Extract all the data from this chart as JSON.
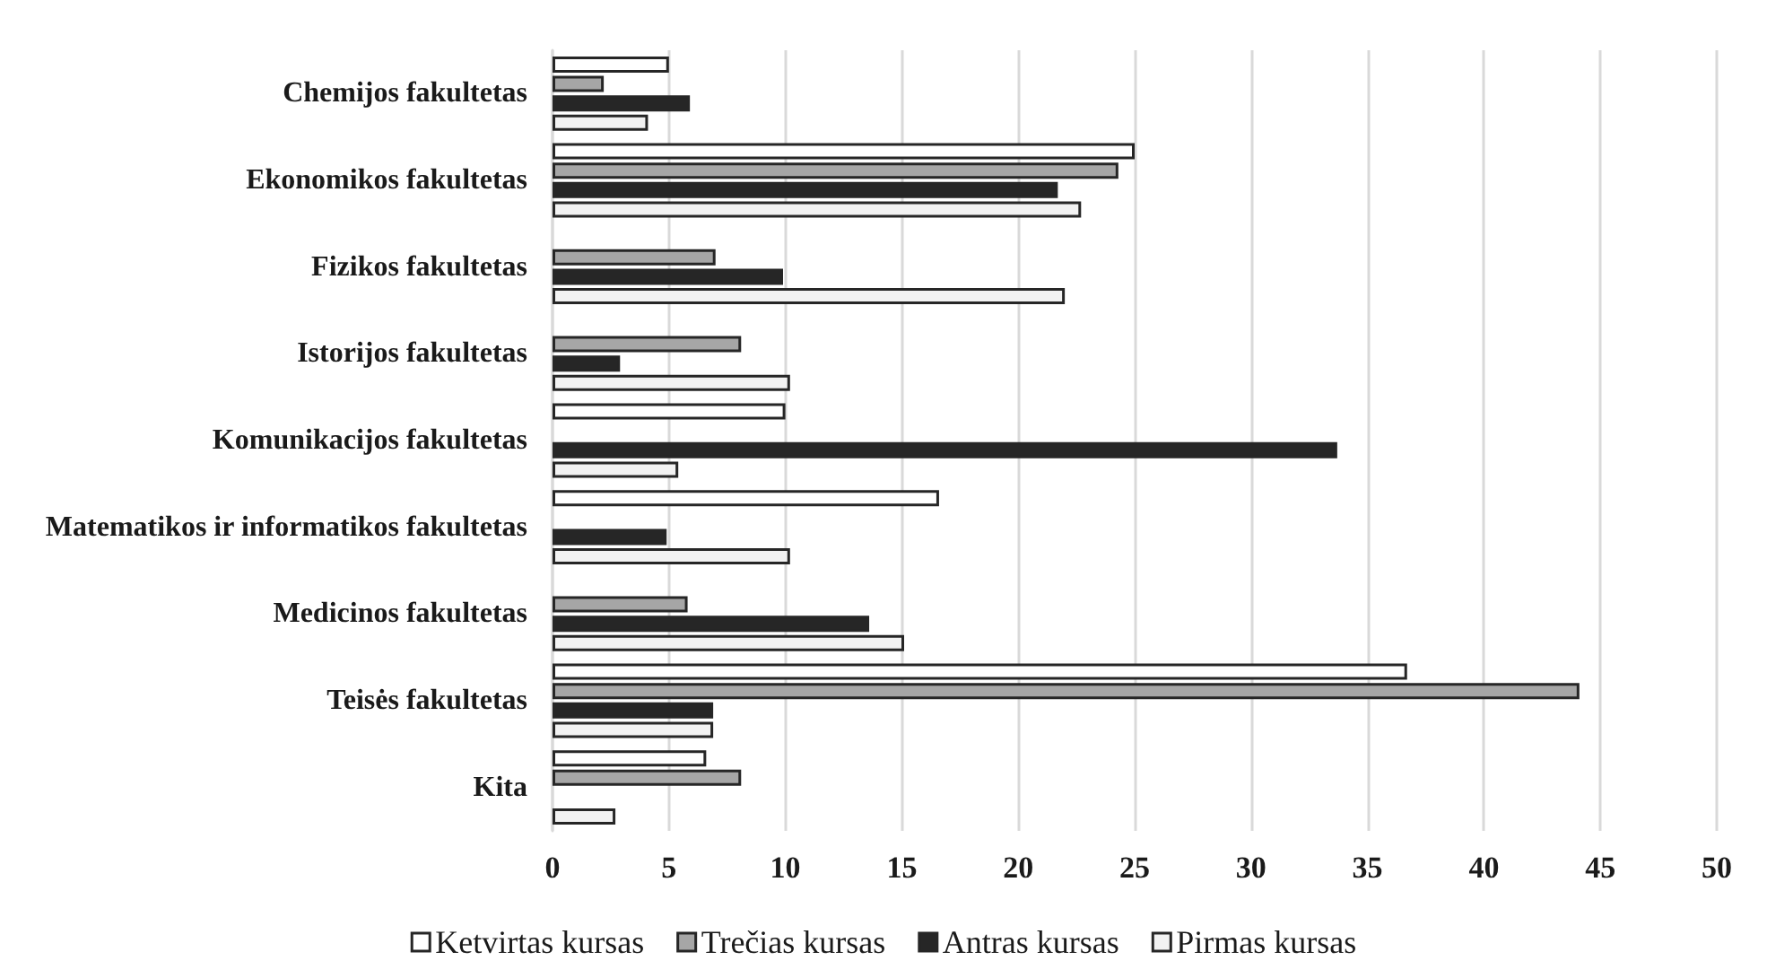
{
  "chart_data": {
    "type": "bar",
    "orientation": "horizontal",
    "categories": [
      "Chemijos fakultetas",
      "Ekonomikos fakultetas",
      "Fizikos fakultetas",
      "Istorijos fakultetas",
      "Komunikacijos fakultetas",
      "Matematikos ir informatikos fakultetas",
      "Medicinos fakultetas",
      "Teisės fakultetas",
      "Kita"
    ],
    "series": [
      {
        "name": "Ketvirtas kursas",
        "color": "#ffffff",
        "values": [
          5,
          25,
          null,
          null,
          10,
          16.6,
          null,
          36.7,
          6.6
        ]
      },
      {
        "name": "Trečias kursas",
        "color": "#a6a6a6",
        "values": [
          2.2,
          24.3,
          7,
          8.1,
          null,
          null,
          5.8,
          44.1,
          8.1
        ]
      },
      {
        "name": "Antras kursas",
        "color": "#262626",
        "values": [
          5.9,
          21.7,
          9.9,
          2.9,
          33.7,
          4.9,
          13.6,
          6.9,
          null
        ]
      },
      {
        "name": "Pirmas kursas",
        "color": "#f2f2f2",
        "values": [
          4.1,
          22.7,
          22,
          10.2,
          5.4,
          10.2,
          15.1,
          6.9,
          2.7
        ]
      }
    ],
    "xlim": [
      0,
      50
    ],
    "xticks": [
      0,
      5,
      10,
      15,
      20,
      25,
      30,
      35,
      40,
      45,
      50
    ],
    "grid": "x",
    "legend": "bottom"
  }
}
